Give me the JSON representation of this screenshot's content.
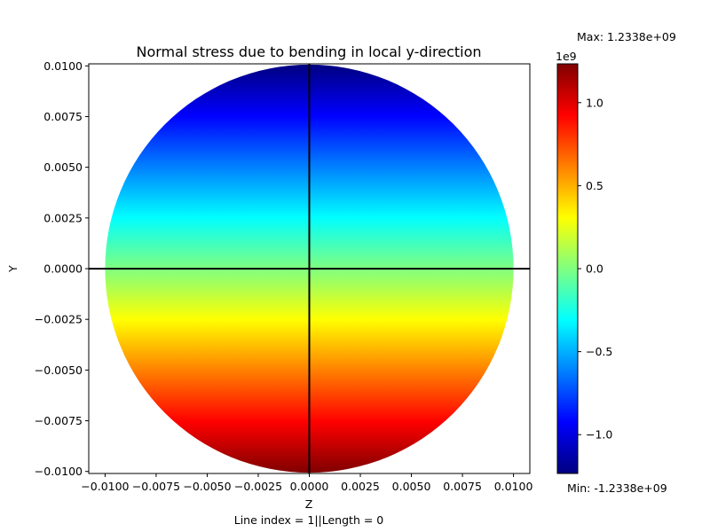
{
  "chart_data": {
    "type": "heatmap",
    "title": "Normal stress due to bending in local y-direction",
    "xlabel": "Z",
    "ylabel": "Y",
    "footer": "Line index = 1||Length = 0",
    "xlim": [
      -0.0108,
      0.0108
    ],
    "ylim": [
      -0.0101,
      0.0101
    ],
    "xticks": [
      "-0.0100",
      "-0.0075",
      "-0.0050",
      "-0.0025",
      "0.0000",
      "0.0025",
      "0.0050",
      "0.0075",
      "0.0100"
    ],
    "xtick_values": [
      -0.01,
      -0.0075,
      -0.005,
      -0.0025,
      0,
      0.0025,
      0.005,
      0.0075,
      0.01
    ],
    "yticks": [
      "-0.0100",
      "-0.0075",
      "-0.0050",
      "-0.0025",
      "0.0000",
      "0.0025",
      "0.0050",
      "0.0075",
      "0.0100"
    ],
    "ytick_values": [
      -0.01,
      -0.0075,
      -0.005,
      -0.0025,
      0,
      0.0025,
      0.005,
      0.0075,
      0.01
    ],
    "section": {
      "shape": "circle",
      "center": [
        0,
        0
      ],
      "radius": 0.01
    },
    "field": {
      "variable": "Y",
      "value_at_bottom": 1233800000.0,
      "value_at_top": -1233800000.0
    },
    "crosshair": {
      "z": 0,
      "y": 0,
      "color": "#000000"
    },
    "colorbar": {
      "colormap": "jet",
      "min": -1233800000.0,
      "max": 1233800000.0,
      "scale_label": "1e9",
      "tick_labels": [
        "−1.0",
        "−0.5",
        "0.0",
        "0.5",
        "1.0"
      ],
      "tick_values": [
        -1000000000.0,
        -500000000.0,
        0,
        500000000.0,
        1000000000.0
      ],
      "max_label": "Max: 1.2338e+09",
      "min_label": "Min: -1.2338e+09"
    }
  }
}
